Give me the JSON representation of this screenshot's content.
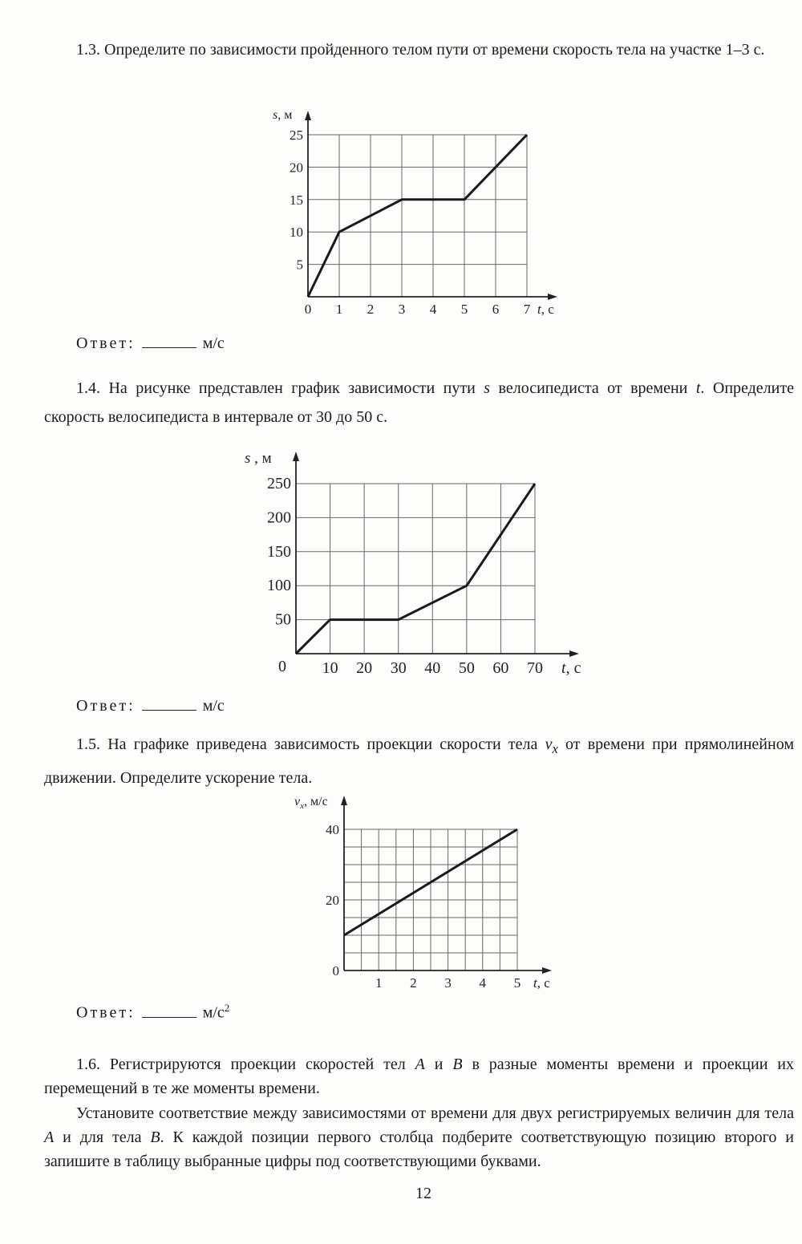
{
  "problems": [
    {
      "id": "1.3",
      "text": "1.3. Определите по зависимости пройденного телом пути от времени скорость тела на участке 1–3 с.",
      "answer_label": "Ответ:",
      "answer_unit": "м/с"
    },
    {
      "id": "1.4",
      "text_a": "1.4. На рисунке представлен график зависимости пути ",
      "var_s": "s",
      "text_b": " велосипедиста от времени ",
      "var_t": "t",
      "text_c": ". Определите скорость велосипедиста в интервале от 30 до 50 с.",
      "answer_label": "Ответ:",
      "answer_unit": "м/с"
    },
    {
      "id": "1.5",
      "text_a": "1.5. На графике приведена зависимость проекции скорости тела ",
      "var_v": "v",
      "var_sub": "x",
      "text_b": " от времени при прямолинейном движении. Определите ускорение тела.",
      "answer_label": "Ответ:",
      "answer_unit": "м/с",
      "answer_unit_sup": "2"
    },
    {
      "id": "1.6",
      "text_a": "1.6. Регистрируются проекции скоростей тел ",
      "var_a": "A",
      "text_b": " и ",
      "var_b": "B",
      "text_c": " в разные моменты времени и проекции их перемещений в те же моменты времени.",
      "p2_a": "Установите соответствие между зависимостями от времени для двух регистрируемых величин для тела ",
      "p2_var_a": "A",
      "p2_b": " и для тела ",
      "p2_var_b": "B",
      "p2_c": ". К каждой позиции первого столбца подберите соответствующую позицию второго и запишите в таблицу выбранные цифры под соответствующими буквами."
    }
  ],
  "page_number": "12",
  "chart_data": [
    {
      "type": "line",
      "ylabel_var": "s",
      "ylabel_unit": ", м",
      "xlabel_var": "t",
      "xlabel_unit": ", с",
      "xlim": [
        0,
        7
      ],
      "ylim": [
        0,
        25
      ],
      "x_grid_step": 1,
      "y_grid_step": 5,
      "x_ticks": [
        "0",
        "1",
        "2",
        "3",
        "4",
        "5",
        "6",
        "7"
      ],
      "x_tick_values": [
        0,
        1,
        2,
        3,
        4,
        5,
        6,
        7
      ],
      "y_ticks": [
        "5",
        "10",
        "15",
        "20",
        "25"
      ],
      "y_tick_values": [
        5,
        10,
        15,
        20,
        25
      ],
      "grid": true,
      "x": [
        0,
        1,
        3,
        5,
        7
      ],
      "y": [
        0,
        10,
        15,
        15,
        25
      ]
    },
    {
      "type": "line",
      "ylabel_var": "s",
      "ylabel_unit": " , м",
      "xlabel_var": "t",
      "xlabel_unit": ",  с",
      "xlim": [
        0,
        70
      ],
      "ylim": [
        0,
        250
      ],
      "x_grid_step": 10,
      "y_grid_step": 50,
      "x_ticks": [
        "10",
        "20",
        "30",
        "40",
        "50",
        "60",
        "70"
      ],
      "x_tick_values": [
        10,
        20,
        30,
        40,
        50,
        60,
        70
      ],
      "y_ticks": [
        "0",
        "50",
        "100",
        "150",
        "200",
        "250"
      ],
      "y_tick_values": [
        0,
        50,
        100,
        150,
        200,
        250
      ],
      "grid": true,
      "x": [
        0,
        10,
        30,
        50,
        70
      ],
      "y": [
        0,
        50,
        50,
        100,
        250
      ]
    },
    {
      "type": "line",
      "ylabel_var": "v",
      "ylabel_sub": "x",
      "ylabel_unit": ", м/с",
      "xlabel_var": "t",
      "xlabel_unit": ", с",
      "xlim": [
        0,
        5
      ],
      "ylim": [
        0,
        40
      ],
      "x_grid_step": 0.5,
      "y_grid_step": 5,
      "x_ticks": [
        "1",
        "2",
        "3",
        "4",
        "5"
      ],
      "x_tick_values": [
        1,
        2,
        3,
        4,
        5
      ],
      "y_ticks": [
        "0",
        "20",
        "40"
      ],
      "y_tick_values": [
        0,
        20,
        40
      ],
      "grid": true,
      "x": [
        0,
        5
      ],
      "y": [
        10,
        40
      ]
    }
  ]
}
